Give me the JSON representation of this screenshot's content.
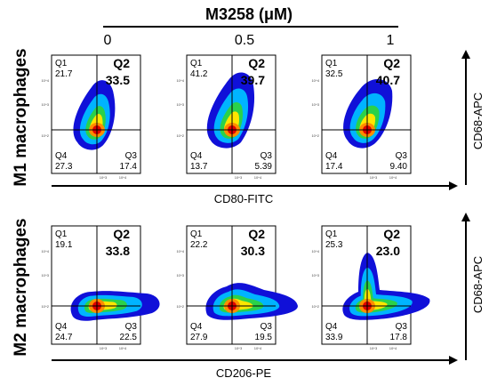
{
  "header": {
    "compound_label": "M3258 (μM)"
  },
  "concentrations": [
    "0",
    "0.5",
    "1"
  ],
  "rows": [
    {
      "row_label": "M1 macrophages",
      "x_axis_label": "CD80-FITC",
      "y_axis_label": "CD68-APC",
      "panels": [
        {
          "q1": "21.7",
          "q2": "33.5",
          "q3": "17.4",
          "q4": "27.3"
        },
        {
          "q1": "41.2",
          "q2": "39.7",
          "q3": "5.39",
          "q4": "13.7"
        },
        {
          "q1": "32.5",
          "q2": "40.7",
          "q3": "9.40",
          "q4": "17.4"
        }
      ]
    },
    {
      "row_label": "M2 macrophages",
      "x_axis_label": "CD206-PE",
      "y_axis_label": "CD68-APC",
      "panels": [
        {
          "q1": "19.1",
          "q2": "33.8",
          "q3": "22.5",
          "q4": "24.7"
        },
        {
          "q1": "22.2",
          "q2": "30.3",
          "q3": "19.5",
          "q4": "27.9"
        },
        {
          "q1": "25.3",
          "q2": "23.0",
          "q3": "17.8",
          "q4": "33.9"
        }
      ]
    }
  ],
  "quadrant_names": {
    "q1": "Q1",
    "q2": "Q2",
    "q3": "Q3",
    "q4": "Q4"
  },
  "tick_labels": {
    "y": [
      "10^4",
      "10^3",
      "10^2"
    ],
    "x": [
      "10^3",
      "10^4"
    ]
  },
  "colors": {
    "hot": "#ff1a00",
    "warm": "#ffe600",
    "mid": "#2bd14a",
    "cool": "#00b4ff",
    "cold": "#1010d8"
  }
}
